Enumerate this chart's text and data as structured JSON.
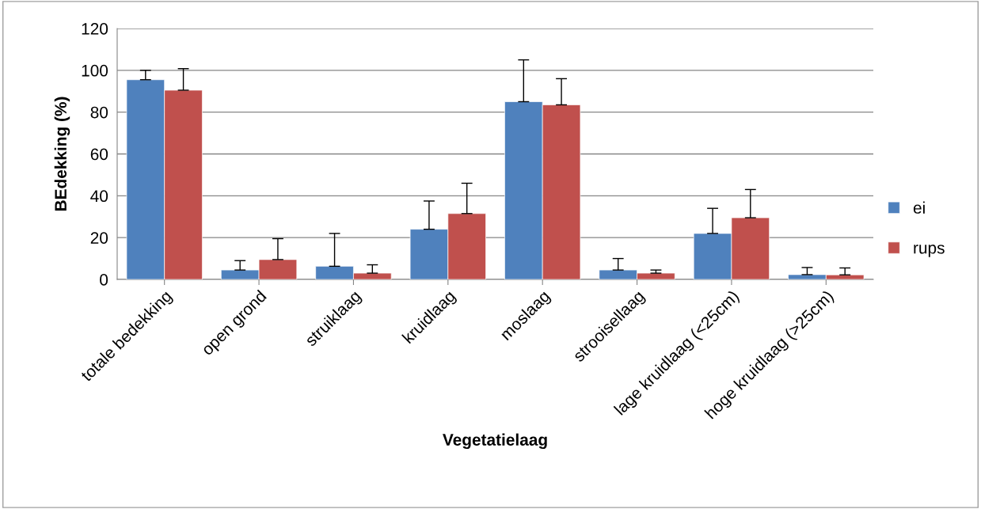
{
  "chart_data": {
    "type": "bar",
    "xlabel": "Vegetatielaag",
    "ylabel": "BEdekking (%)",
    "categories": [
      "totale bedekking",
      "open grond",
      "struiklaag",
      "kruidlaag",
      "moslaag",
      "strooisellaag",
      "lage kruidlaag (<25cm)",
      "hoge kruidlaag (>25cm)"
    ],
    "series": [
      {
        "name": "ei",
        "color": "#4f81bd",
        "values": [
          95.5,
          4.5,
          6.3,
          24,
          85,
          4.5,
          22,
          2.3
        ],
        "errors": [
          [
            95.5,
            100
          ],
          [
            4.5,
            9
          ],
          [
            6.3,
            22
          ],
          [
            24,
            37.5
          ],
          [
            85,
            105
          ],
          [
            4.5,
            10
          ],
          [
            22,
            34
          ],
          [
            2.3,
            5.7
          ]
        ]
      },
      {
        "name": "rups",
        "color": "#c0504d",
        "values": [
          90.5,
          9.5,
          3,
          31.5,
          83.5,
          3,
          29.5,
          2.2
        ],
        "errors": [
          [
            90.5,
            100.8
          ],
          [
            9.5,
            19.5
          ],
          [
            3,
            7
          ],
          [
            31.5,
            46
          ],
          [
            83.5,
            96
          ],
          [
            3,
            4.5
          ],
          [
            29.5,
            43
          ],
          [
            2.2,
            5.5
          ]
        ]
      }
    ],
    "ylim": [
      0,
      120
    ],
    "yticks": [
      0,
      20,
      40,
      60,
      80,
      100,
      120
    ],
    "grid": "y",
    "legend": "right"
  }
}
